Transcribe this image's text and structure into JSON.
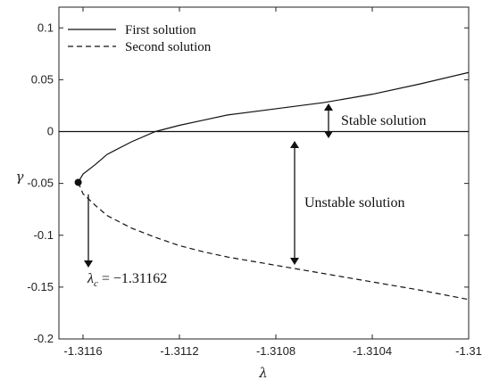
{
  "chart_data": {
    "type": "line",
    "xlabel": "λ",
    "ylabel": "γ",
    "xlim": [
      -1.3117,
      -1.31
    ],
    "ylim": [
      -0.2,
      0.12
    ],
    "x_ticks": [
      -1.3116,
      -1.3112,
      -1.3108,
      -1.3104,
      -1.31
    ],
    "x_tick_labels": [
      "-1.3116",
      "-1.3112",
      "-1.3108",
      "-1.3104",
      "-1.31"
    ],
    "y_ticks": [
      0.1,
      0.05,
      0,
      -0.05,
      -0.1,
      -0.15,
      -0.2
    ],
    "y_tick_labels": [
      "0.1",
      "0.05",
      "0",
      "-0.05",
      "-0.1",
      "-0.15",
      "-0.2"
    ],
    "grid": false,
    "legend": {
      "placement": "top-left",
      "entries": [
        {
          "label": "First solution",
          "style": "solid"
        },
        {
          "label": "Second solution",
          "style": "dashed"
        }
      ]
    },
    "series": [
      {
        "name": "First solution",
        "style": "solid",
        "x": [
          -1.31162,
          -1.3116,
          -1.31155,
          -1.3115,
          -1.3114,
          -1.3113,
          -1.3112,
          -1.3111,
          -1.311,
          -1.3108,
          -1.3106,
          -1.3104,
          -1.3102,
          -1.31
        ],
        "y": [
          -0.049,
          -0.041,
          -0.032,
          -0.022,
          -0.01,
          0.0,
          0.006,
          0.011,
          0.016,
          0.022,
          0.028,
          0.036,
          0.046,
          0.057
        ]
      },
      {
        "name": "Second solution",
        "style": "dashed",
        "x": [
          -1.31162,
          -1.3116,
          -1.31155,
          -1.3115,
          -1.3114,
          -1.3113,
          -1.3112,
          -1.3111,
          -1.311,
          -1.3108,
          -1.3106,
          -1.3104,
          -1.3102,
          -1.31
        ],
        "y": [
          -0.049,
          -0.06,
          -0.071,
          -0.081,
          -0.093,
          -0.102,
          -0.11,
          -0.116,
          -0.121,
          -0.129,
          -0.137,
          -0.145,
          -0.153,
          -0.162
        ]
      },
      {
        "name": "",
        "style": "solid",
        "x": [
          -1.3117,
          -1.31
        ],
        "y": [
          0,
          0
        ]
      }
    ],
    "critical_point": {
      "x": -1.31162,
      "y": -0.049
    },
    "annotations": {
      "critical_label": "λ_c = −1.31162",
      "critical_label_main": "λ",
      "critical_label_sub": "c",
      "critical_label_rest": " = −1.31162",
      "stable": "Stable solution",
      "unstable": "Unstable solution"
    }
  }
}
